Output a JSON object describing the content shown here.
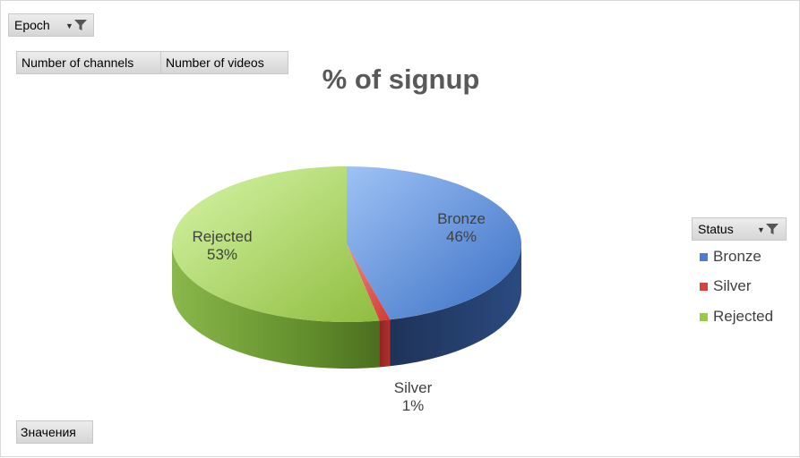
{
  "filters": {
    "epoch_label": "Epoch",
    "values_label": "Значения",
    "number_of_channels": "Number of channels",
    "number_of_videos": "Number of videos",
    "status_label": "Status"
  },
  "chart_data": {
    "type": "pie",
    "title": "% of signup",
    "categories": [
      "Bronze",
      "Silver",
      "Rejected"
    ],
    "values": [
      46,
      1,
      53
    ],
    "labels": [
      "46%",
      "1%",
      "53%"
    ],
    "colors": [
      "#4a7ed4",
      "#d9413a",
      "#9bc84a"
    ],
    "legend_position": "right"
  }
}
